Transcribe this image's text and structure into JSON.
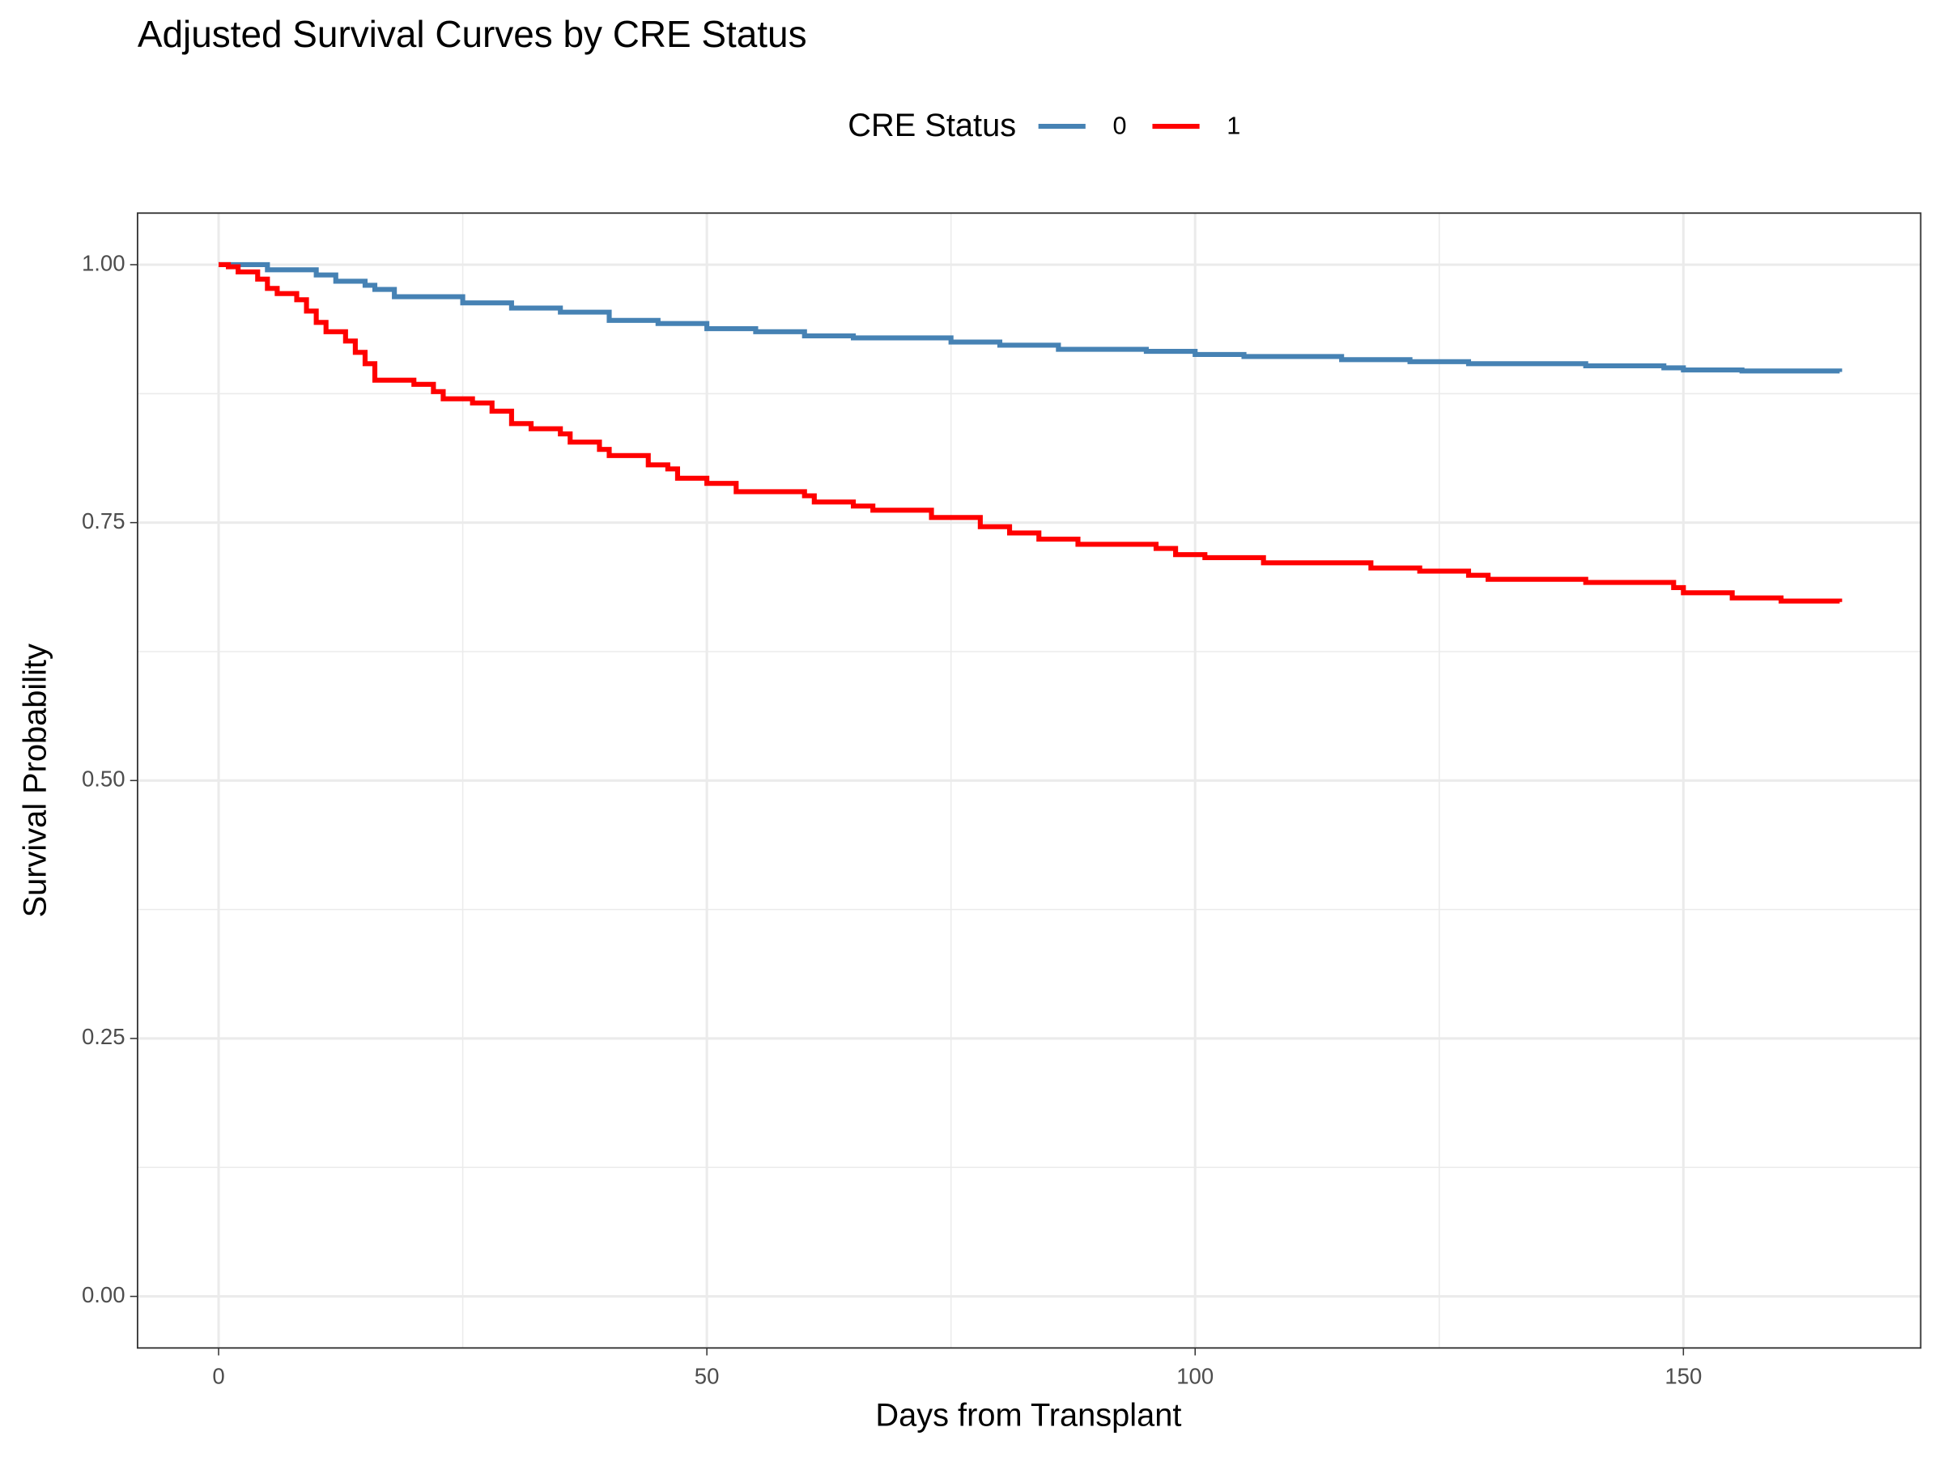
{
  "chart_data": {
    "type": "line",
    "step": true,
    "title": "Adjusted Survival Curves by CRE Status",
    "x_label": "Days from Transplant",
    "y_label": "Survival Probability",
    "legend_title": "CRE Status",
    "legend_position": "top",
    "xlim": [
      -8.3,
      174.3
    ],
    "xticks": [
      0,
      50,
      100,
      150
    ],
    "x_minor_grid": [
      25,
      75,
      125
    ],
    "ylim": [
      -0.05,
      1.05
    ],
    "yticks": [
      {
        "value": 0,
        "label": "0.00"
      },
      {
        "value": 0.25,
        "label": "0.25"
      },
      {
        "value": 0.5,
        "label": "0.50"
      },
      {
        "value": 0.75,
        "label": "0.75"
      },
      {
        "value": 1,
        "label": "1.00"
      }
    ],
    "y_minor_grid": [
      0.125,
      0.375,
      0.625,
      0.875
    ],
    "grid": true,
    "series": [
      {
        "name": "0",
        "color": "#4682B4",
        "x": [
          0,
          5,
          10,
          12,
          15,
          16,
          18,
          25,
          30,
          35,
          40,
          45,
          50,
          55,
          60,
          65,
          75,
          80,
          86,
          95,
          100,
          105,
          115,
          122,
          128,
          140,
          148,
          150,
          156,
          166
        ],
        "values": [
          1.0,
          0.995,
          0.99,
          0.984,
          0.98,
          0.976,
          0.969,
          0.963,
          0.958,
          0.954,
          0.946,
          0.943,
          0.938,
          0.935,
          0.931,
          0.929,
          0.925,
          0.922,
          0.918,
          0.916,
          0.913,
          0.911,
          0.908,
          0.906,
          0.904,
          0.902,
          0.9,
          0.898,
          0.897,
          0.896
        ]
      },
      {
        "name": "1",
        "color": "#FF0000",
        "x": [
          0,
          1,
          2,
          4,
          5,
          6,
          8,
          9,
          10,
          11,
          13,
          14,
          15,
          16,
          20,
          22,
          23,
          26,
          28,
          30,
          32,
          35,
          36,
          39,
          40,
          44,
          46,
          47,
          50,
          53,
          60,
          61,
          65,
          67,
          73,
          78,
          81,
          84,
          88,
          96,
          98,
          101,
          107,
          118,
          123,
          128,
          130,
          140,
          149,
          150,
          155,
          160,
          166
        ],
        "values": [
          1.0,
          0.998,
          0.993,
          0.986,
          0.977,
          0.972,
          0.966,
          0.955,
          0.944,
          0.935,
          0.926,
          0.915,
          0.904,
          0.888,
          0.884,
          0.877,
          0.87,
          0.866,
          0.858,
          0.846,
          0.841,
          0.836,
          0.828,
          0.821,
          0.815,
          0.806,
          0.802,
          0.793,
          0.788,
          0.78,
          0.776,
          0.77,
          0.766,
          0.762,
          0.755,
          0.746,
          0.74,
          0.734,
          0.729,
          0.725,
          0.719,
          0.716,
          0.711,
          0.706,
          0.703,
          0.699,
          0.695,
          0.692,
          0.687,
          0.682,
          0.677,
          0.674,
          0.673
        ]
      }
    ]
  }
}
